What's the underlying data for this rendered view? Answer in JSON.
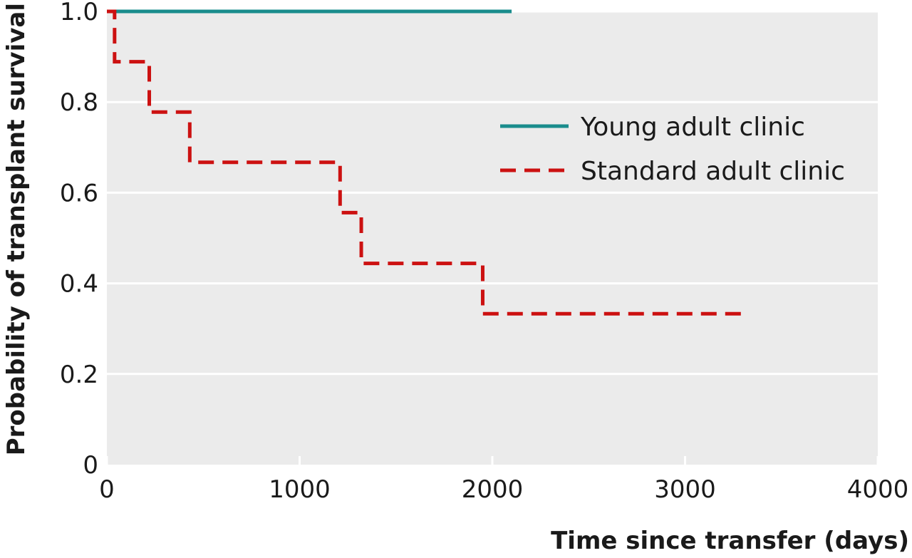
{
  "chart_data": {
    "type": "line",
    "title": "",
    "xlabel": "Time since transfer (days)",
    "ylabel": "Probability of transplant survival",
    "xlim": [
      0,
      4000
    ],
    "ylim": [
      0,
      1.0
    ],
    "x_ticks": [
      0,
      1000,
      2000,
      3000,
      4000
    ],
    "x_tick_labels": [
      "0",
      "1000",
      "2000",
      "3000",
      "4000"
    ],
    "y_ticks": [
      0,
      0.2,
      0.4,
      0.6,
      0.8,
      1.0
    ],
    "y_tick_labels": [
      "0",
      "0.2",
      "0.4",
      "0.6",
      "0.8",
      "1.0"
    ],
    "grid": "horizontal",
    "background": "#ebebeb",
    "legend_position": "top-right",
    "series": [
      {
        "name": "Young adult clinic",
        "style": "solid",
        "color": "#1a8c8c",
        "step": true,
        "x": [
          0,
          2100
        ],
        "y": [
          1.0,
          1.0
        ]
      },
      {
        "name": "Standard adult clinic",
        "style": "dashed",
        "color": "#cc1111",
        "step": true,
        "x": [
          0,
          40,
          220,
          430,
          1210,
          1320,
          1950,
          3300
        ],
        "y": [
          1.0,
          0.889,
          0.778,
          0.667,
          0.556,
          0.444,
          0.333,
          0.333
        ]
      }
    ]
  }
}
